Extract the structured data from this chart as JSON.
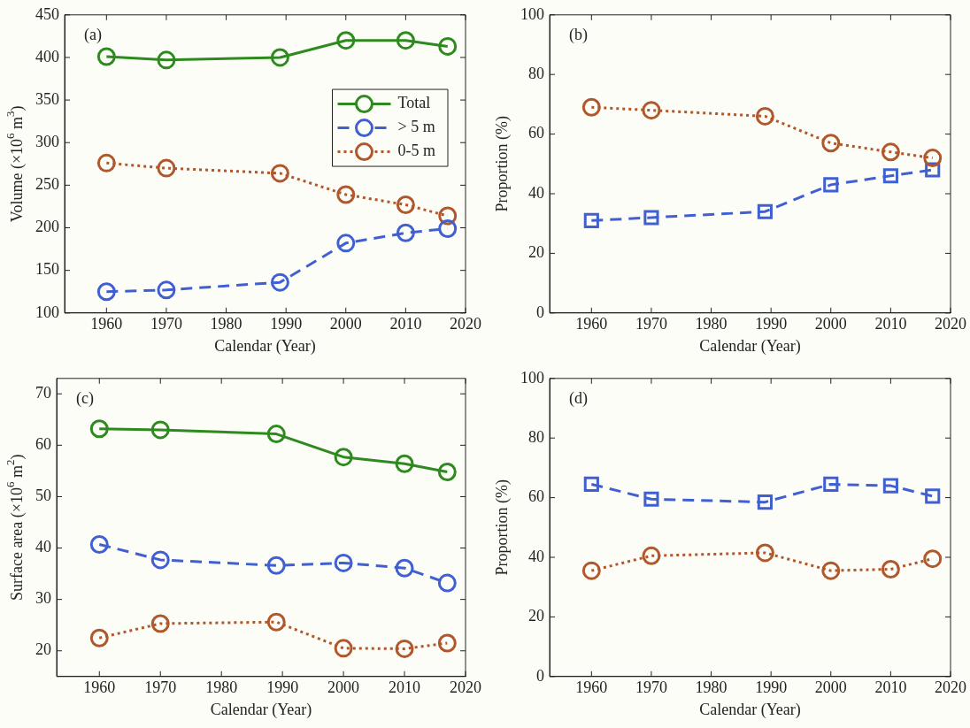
{
  "chart_data": [
    {
      "type": "line",
      "xlabel": "Calendar (Year)",
      "ylabel": "Volume (×10$^{6}$ m$^{3}$)",
      "x": [
        1960,
        1970,
        1989,
        2000,
        2010,
        2017
      ],
      "xlim": [
        1953,
        2020
      ],
      "xticks": [
        1960,
        1970,
        1980,
        1990,
        2000,
        2010,
        2020
      ],
      "ylim": [
        100,
        450
      ],
      "yticks": [
        100,
        150,
        200,
        250,
        300,
        350,
        400,
        450
      ],
      "legend": "top right",
      "annotations": [
        "(a)"
      ],
      "series": [
        {
          "name": "Total",
          "color": "#2e8a1f",
          "values": [
            401,
            397,
            400,
            420,
            420,
            413
          ],
          "marker": "circle",
          "line_style": "solid"
        },
        {
          "name": "> 5 m",
          "color": "#4060d2",
          "values": [
            125,
            127,
            136,
            182,
            194,
            199
          ],
          "marker": "circle",
          "line_style": "dashed"
        },
        {
          "name": "0-5 m",
          "color": "#b0572c",
          "values": [
            276,
            270,
            264,
            239,
            227,
            214
          ],
          "marker": "circle",
          "line_style": "dotted"
        }
      ]
    },
    {
      "type": "line",
      "xlabel": "Calendar (Year)",
      "ylabel": "Proportion (%)",
      "x": [
        1960,
        1970,
        1989,
        2000,
        2010,
        2017
      ],
      "xlim": [
        1953,
        2020
      ],
      "xticks": [
        1960,
        1970,
        1980,
        1990,
        2000,
        2010,
        2020
      ],
      "ylim": [
        0,
        100
      ],
      "yticks": [
        0,
        20,
        40,
        60,
        80,
        100
      ],
      "annotations": [
        "(b)"
      ],
      "series": [
        {
          "color": "#b0572c",
          "values": [
            69,
            68,
            66,
            57,
            54,
            52
          ],
          "marker": "circle",
          "line_style": "dotted"
        },
        {
          "color": "#4060d2",
          "values": [
            31,
            32,
            34,
            43,
            46,
            48
          ],
          "marker": "square",
          "line_style": "dashed"
        }
      ]
    },
    {
      "type": "line",
      "xlabel": "Calendar (Year)",
      "ylabel": "Surface area (×10$^{6}$ m$^{2}$)",
      "x": [
        1960,
        1970,
        1989,
        2000,
        2010,
        2017
      ],
      "xlim": [
        1953,
        2020
      ],
      "xticks": [
        1960,
        1970,
        1980,
        1990,
        2000,
        2010,
        2020
      ],
      "ylim": [
        15,
        73
      ],
      "yticks": [
        20,
        30,
        40,
        50,
        60,
        70
      ],
      "annotations": [
        "(c)"
      ],
      "series": [
        {
          "color": "#2e8a1f",
          "values": [
            63.2,
            63.0,
            62.2,
            57.7,
            56.4,
            54.8
          ],
          "marker": "circle",
          "line_style": "solid"
        },
        {
          "color": "#4060d2",
          "values": [
            40.7,
            37.7,
            36.6,
            37.1,
            36.1,
            33.2
          ],
          "marker": "circle",
          "line_style": "dashed"
        },
        {
          "color": "#b0572c",
          "values": [
            22.5,
            25.3,
            25.6,
            20.5,
            20.4,
            21.5
          ],
          "marker": "circle",
          "line_style": "dotted"
        }
      ]
    },
    {
      "type": "line",
      "xlabel": "Calendar (Year)",
      "ylabel": "Proportion (%)",
      "x": [
        1960,
        1970,
        1989,
        2000,
        2010,
        2017
      ],
      "xlim": [
        1953,
        2020
      ],
      "xticks": [
        1960,
        1970,
        1980,
        1990,
        2000,
        2010,
        2020
      ],
      "ylim": [
        0,
        100
      ],
      "yticks": [
        0,
        20,
        40,
        60,
        80,
        100
      ],
      "annotations": [
        "(d)"
      ],
      "series": [
        {
          "color": "#4060d2",
          "values": [
            64.5,
            59.5,
            58.5,
            64.5,
            64,
            60.5
          ],
          "marker": "square",
          "line_style": "dashed"
        },
        {
          "color": "#b0572c",
          "values": [
            35.5,
            40.5,
            41.5,
            35.5,
            36,
            39.5
          ],
          "marker": "circle",
          "line_style": "dotted"
        }
      ]
    }
  ]
}
